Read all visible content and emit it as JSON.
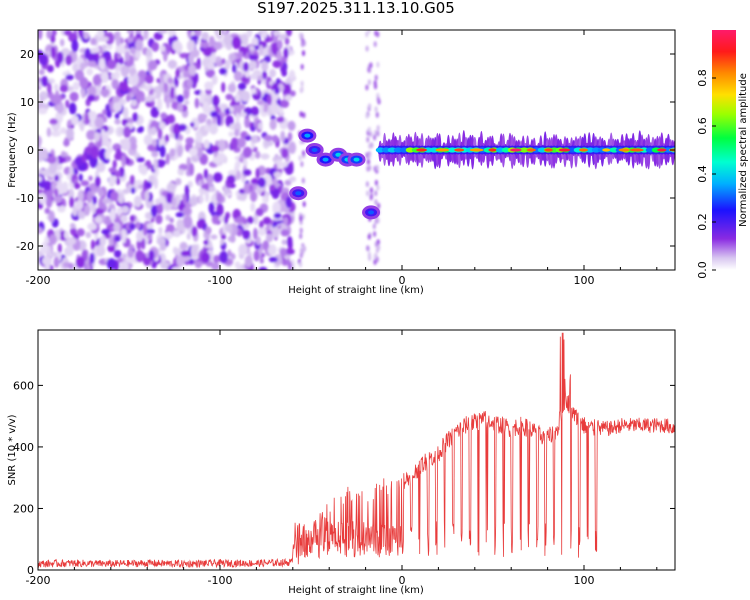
{
  "title": "S197.2025.311.13.10.G05",
  "chart_data": [
    {
      "type": "heatmap",
      "xlabel": "Height of straight line (km)",
      "ylabel": "Frequency (Hz)",
      "xlim": [
        -200,
        150
      ],
      "ylim": [
        -25,
        25
      ],
      "x_ticks": [
        -200,
        -100,
        0,
        100
      ],
      "y_ticks": [
        -20,
        -10,
        0,
        10,
        20
      ],
      "colorbar": {
        "label": "Normalized spectral amplitude",
        "range": [
          0.0,
          1.0
        ],
        "ticks": [
          0.0,
          0.2,
          0.4,
          0.6,
          0.8
        ]
      },
      "regions": [
        {
          "name": "noise",
          "x_range": [
            -200,
            -60
          ],
          "description_value": "scattered low amplitude"
        },
        {
          "name": "gap",
          "x_range": [
            -60,
            150
          ]
        }
      ],
      "features": [
        {
          "x": -57,
          "freq": -9,
          "amplitude": 0.3
        },
        {
          "x": -52,
          "freq": 3,
          "amplitude": 0.35
        },
        {
          "x": -48,
          "freq": 0,
          "amplitude": 0.3
        },
        {
          "x": -42,
          "freq": -2,
          "amplitude": 0.35
        },
        {
          "x": -35,
          "freq": -1,
          "amplitude": 0.4
        },
        {
          "x": -30,
          "freq": -2,
          "amplitude": 0.4
        },
        {
          "x": -25,
          "freq": -2,
          "amplitude": 0.4
        },
        {
          "x": -17,
          "freq": -13,
          "amplitude": 0.3
        }
      ],
      "ridge": {
        "x_range": [
          -12,
          150
        ],
        "freq": 0,
        "amplitude_peak": 1.0
      }
    },
    {
      "type": "line",
      "xlabel": "Height of straight line (km)",
      "ylabel": "SNR (10 * v/v)",
      "xlim": [
        -200,
        150
      ],
      "ylim": [
        0,
        780
      ],
      "x_ticks": [
        -200,
        -100,
        0,
        100
      ],
      "y_ticks": [
        0,
        200,
        400,
        600
      ],
      "series": [
        {
          "name": "SNR",
          "color": "#e83c3c",
          "x": [
            -200,
            -180,
            -160,
            -140,
            -120,
            -100,
            -80,
            -60,
            -55,
            -50,
            -45,
            -40,
            -35,
            -30,
            -25,
            -20,
            -15,
            -10,
            -5,
            0,
            5,
            10,
            15,
            20,
            25,
            30,
            35,
            40,
            45,
            50,
            55,
            60,
            65,
            70,
            75,
            80,
            85,
            90,
            95,
            100,
            105,
            110,
            115,
            120,
            125,
            130,
            135,
            140,
            145,
            150
          ],
          "y": [
            20,
            22,
            20,
            22,
            20,
            22,
            22,
            25,
            60,
            120,
            160,
            200,
            220,
            240,
            250,
            230,
            260,
            270,
            280,
            290,
            300,
            340,
            360,
            380,
            420,
            450,
            470,
            480,
            490,
            480,
            470,
            460,
            470,
            460,
            440,
            430,
            450,
            560,
            500,
            470,
            460,
            460,
            460,
            470,
            470,
            470,
            470,
            470,
            470,
            460
          ]
        }
      ]
    }
  ]
}
